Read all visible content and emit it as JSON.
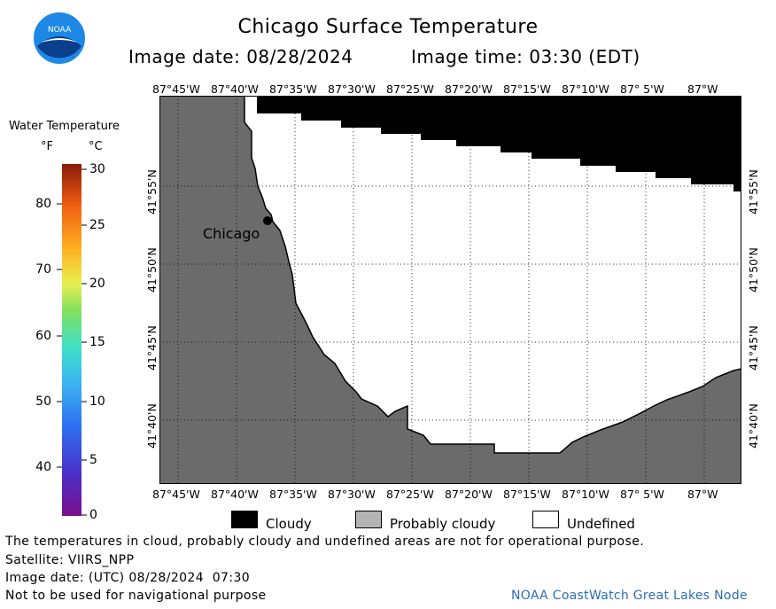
{
  "header": {
    "title": "Chicago Surface Temperature",
    "image_date": "Image date: 08/28/2024",
    "image_time": "Image time: 03:30 (EDT)"
  },
  "logo": {
    "text": "NOAA",
    "icon": "noaa-logo-icon"
  },
  "colorbar": {
    "title": "Water Temperature",
    "unit_f": "°F",
    "unit_c": "°C",
    "f_ticks": [
      "80",
      "70",
      "60",
      "50",
      "40"
    ],
    "c_ticks": [
      "30",
      "25",
      "20",
      "15",
      "10",
      "5",
      "0"
    ]
  },
  "map": {
    "lon_labels": [
      "87°45'W",
      "87°40'W",
      "87°35'W",
      "87°30'W",
      "87°25'W",
      "87°20'W",
      "87°15'W",
      "87°10'W",
      "87° 5'W",
      "87°W"
    ],
    "lat_labels": [
      "41°55'N",
      "41°50'N",
      "41°45'N",
      "41°40'N"
    ],
    "city_label": "Chicago",
    "colors": {
      "land": "#6b6b6b",
      "cloud": "#000000",
      "undefined": "#ffffff"
    }
  },
  "legend": {
    "cloudy": "Cloudy",
    "probably_cloudy": "Probably cloudy",
    "undefined": "Undefined"
  },
  "footer": {
    "disclaimer": "The temperatures in cloud, probably cloudy and undefined areas are not for operational purpose.",
    "satellite": "Satellite: VIIRS_NPP",
    "utc_date": "Image date: (UTC) 08/28/2024  07:30",
    "nav_warning": "Not to be used for navigational purpose",
    "credit": "NOAA CoastWatch Great Lakes Node"
  }
}
